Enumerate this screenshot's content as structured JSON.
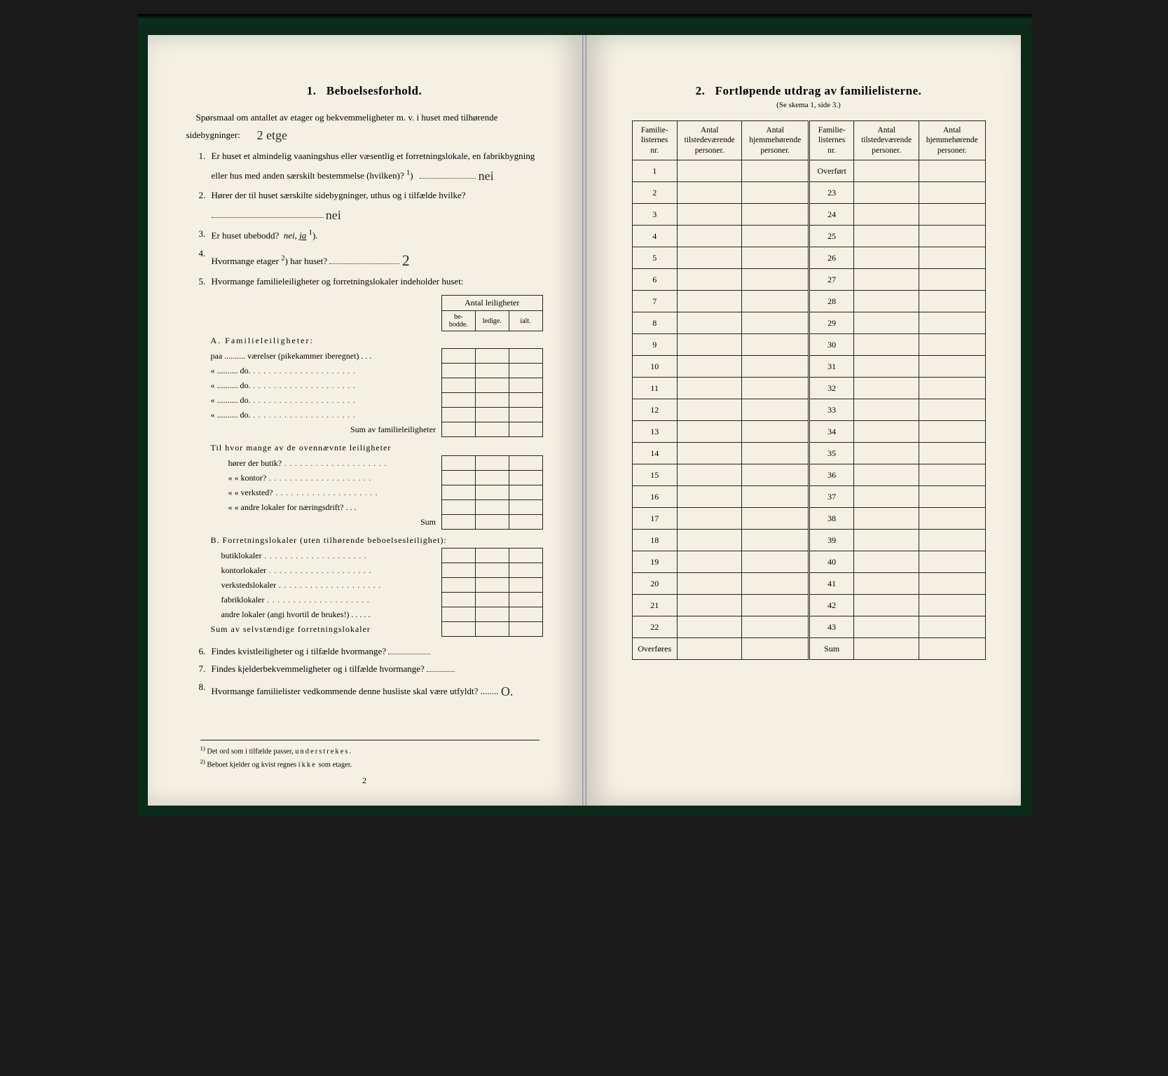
{
  "left": {
    "heading_num": "1.",
    "heading": "Beboelsesforhold.",
    "intro": "Spørsmaal om antallet av etager og bekvemmeligheter m. v. i huset med tilhørende sidebygninger:",
    "intro_hand": "2 etge",
    "q1_num": "1.",
    "q1": "Er huset et almindelig vaaningshus eller væsentlig et forretningslokale, en fabrikbygning eller hus med anden særskilt bestemmelse (hvilken)?",
    "q1_sup": "1",
    "q1_hand": "nei",
    "q2_num": "2.",
    "q2": "Hører der til huset særskilte sidebygninger, uthus og i tilfælde hvilke?",
    "q2_hand": "nei",
    "q3_num": "3.",
    "q3_a": "Er huset ubebodd?",
    "q3_nei": "nei,",
    "q3_ja": "ja",
    "q3_sup": "1",
    "q3_end": ").",
    "q4_num": "4.",
    "q4_a": "Hvormange etager",
    "q4_sup": "2",
    "q4_b": ") har huset?",
    "q4_hand": "2",
    "q5_num": "5.",
    "q5": "Hvormange familieleiligheter og forretningslokaler indeholder huset:",
    "tbl_head": "Antal leiligheter",
    "tbl_h1": "be-\nbodde.",
    "tbl_h2": "ledige.",
    "tbl_h3": "ialt.",
    "secA": "A. Familieleiligheter:",
    "rA1": "paa .......... værelser (pikekammer iberegnet) . . .",
    "rA2": "«   ..........   do.",
    "rA3": "«   ..........   do.",
    "rA4": "«   ..........   do.",
    "rA5": "«   ..........   do.",
    "rAsum": "Sum av familieleiligheter",
    "midQ": "Til hvor mange av de ovennævnte leiligheter",
    "mid1": "hører der butik?",
    "mid2": "«     «   kontor?",
    "mid3": "«     «   verksted?",
    "mid4": "«     «   andre lokaler for næringsdrift?   . . .",
    "midSum": "Sum",
    "secB": "B. Forretningslokaler (uten tilhørende beboelsesleilighet):",
    "rB1": "butiklokaler",
    "rB2": "kontorlokaler",
    "rB3": "verkstedslokaler",
    "rB4": "fabriklokaler",
    "rB5": "andre lokaler (angi hvortil de brukes!)  . . . . .",
    "rBsum": "Sum av selvstændige forretningslokaler",
    "q6_num": "6.",
    "q6": "Findes kvistleiligheter og i tilfælde hvormange?",
    "q7_num": "7.",
    "q7": "Findes kjelderbekvemmeligheter og i tilfælde hvormange?",
    "q8_num": "8.",
    "q8": "Hvormange familielister vedkommende denne husliste skal være utfyldt?",
    "q8_hand": "O.",
    "fn1_n": "1)",
    "fn1": "Det ord som i tilfælde passer, understrekes.",
    "fn2_n": "2)",
    "fn2": "Beboet kjelder og kvist regnes ikke som etager.",
    "pagenum": "2"
  },
  "right": {
    "heading_num": "2.",
    "heading": "Fortløpende utdrag av familielisterne.",
    "subtitle": "(Se skema 1, side 3.)",
    "h_nr": "Familie-\nlisternes\nnr.",
    "h_tilstede": "Antal\ntilstedeværende\npersoner.",
    "h_hjemme": "Antal\nhjemmehørende\npersoner.",
    "col1": [
      "1",
      "2",
      "3",
      "4",
      "5",
      "6",
      "7",
      "8",
      "9",
      "10",
      "11",
      "12",
      "13",
      "14",
      "15",
      "16",
      "17",
      "18",
      "19",
      "20",
      "21",
      "22",
      "Overføres"
    ],
    "col2": [
      "Overført",
      "23",
      "24",
      "25",
      "26",
      "27",
      "28",
      "29",
      "30",
      "31",
      "32",
      "33",
      "34",
      "35",
      "36",
      "37",
      "38",
      "39",
      "40",
      "41",
      "42",
      "43",
      "Sum"
    ]
  }
}
